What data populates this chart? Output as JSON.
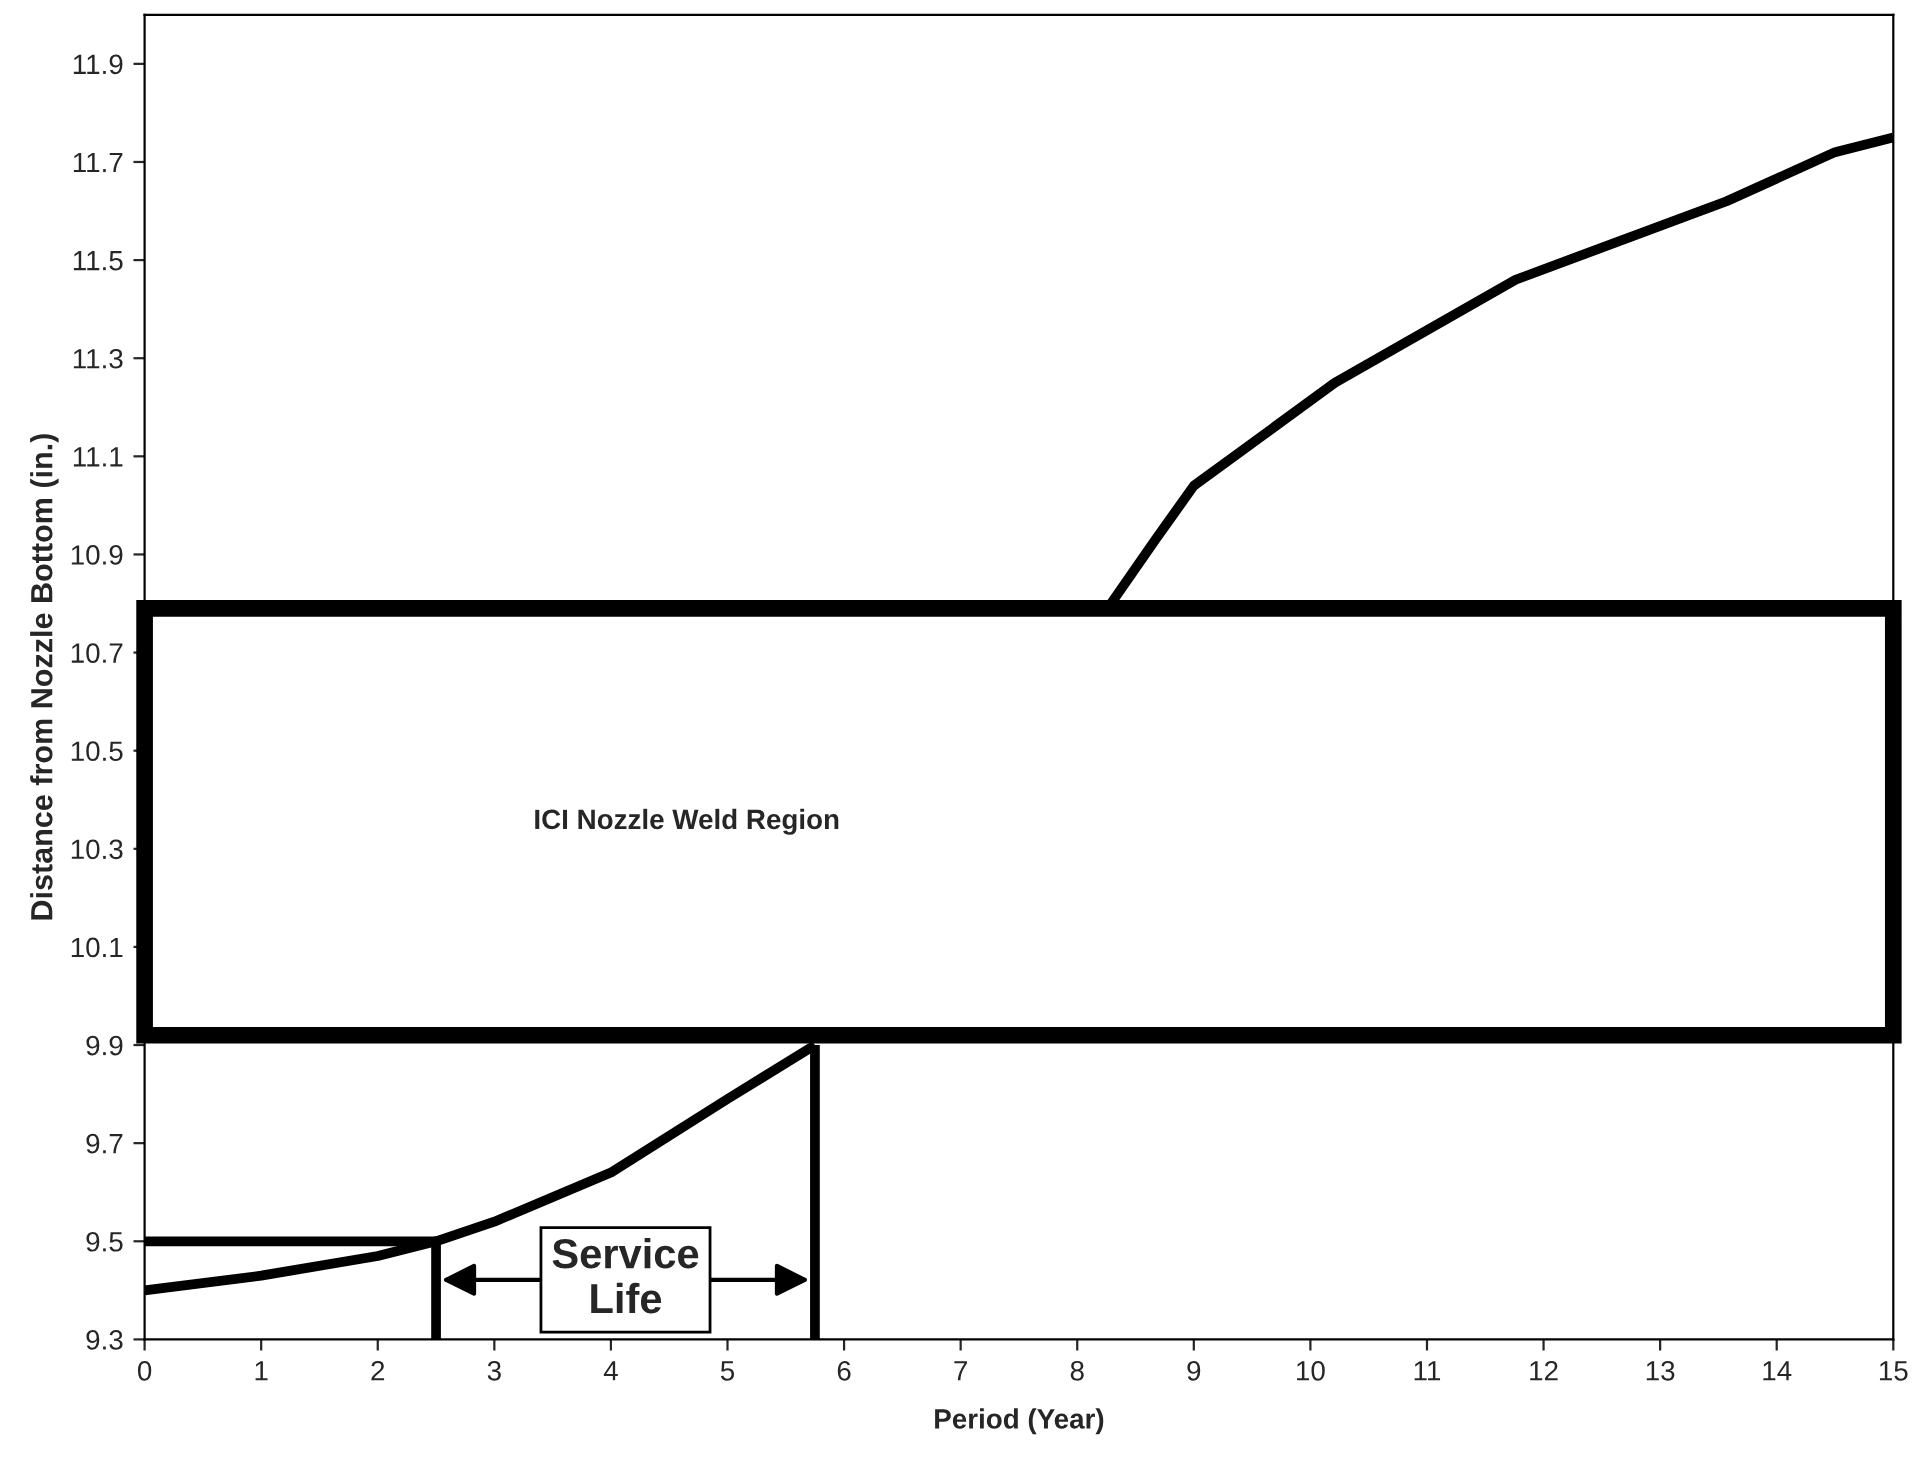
{
  "chart_data": {
    "type": "line",
    "xlabel": "Period (Year)",
    "ylabel": "Distance from Nozzle Bottom (in.)",
    "series": [
      {
        "color": "#000000",
        "x": [
          0,
          1,
          2,
          2.5,
          3,
          4,
          5,
          5.75
        ],
        "values": [
          9.4,
          9.43,
          9.47,
          9.5,
          9.54,
          9.64,
          9.79,
          9.9
        ]
      },
      {
        "color": "#000000",
        "x": [
          8.29,
          8.67,
          9.0,
          10.21,
          11.76,
          13.57,
          14.5,
          15
        ],
        "values": [
          10.8,
          10.93,
          11.04,
          11.25,
          11.46,
          11.62,
          11.72,
          11.75
        ]
      },
      {
        "color": "#000000",
        "x": [
          0,
          2.5
        ],
        "values": [
          9.5,
          9.5
        ]
      },
      {
        "color": "#000000",
        "x": [
          2.5,
          2.5
        ],
        "values": [
          9.3,
          9.5
        ]
      },
      {
        "color": "#000000",
        "x": [
          5.75,
          5.75
        ],
        "values": [
          9.3,
          9.9
        ]
      }
    ],
    "bands": [
      {
        "axis": "y",
        "from": 9.92,
        "to": 10.79,
        "label": "ICI Nozzle Weld Region",
        "color": "#ffffff"
      }
    ],
    "annotations": [
      "Service\nLife"
    ],
    "xlim": [
      0,
      15
    ],
    "xticks": [
      0,
      1,
      2,
      3,
      4,
      5,
      6,
      7,
      8,
      9,
      10,
      11,
      12,
      13,
      14,
      15
    ],
    "ylim": [
      9.3,
      12.0
    ],
    "yticks": [
      9.3,
      9.5,
      9.7,
      9.9,
      10.1,
      10.3,
      10.5,
      10.7,
      10.9,
      11.1,
      11.3,
      11.5,
      11.7,
      11.9
    ],
    "grid": false,
    "legend": false,
    "marker": "none",
    "line_style": "solid"
  }
}
